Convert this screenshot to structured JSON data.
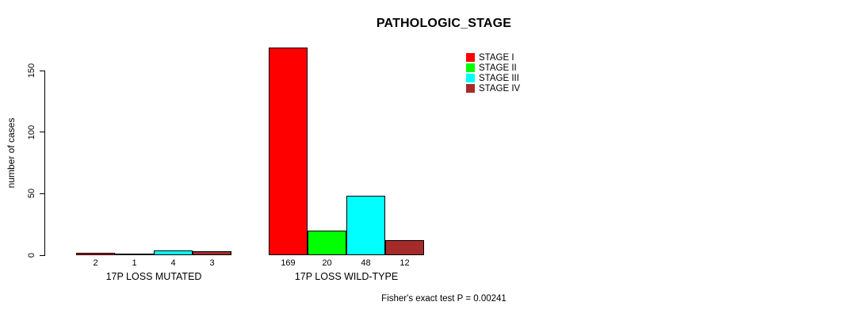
{
  "title": "PATHOLOGIC_STAGE",
  "chart_data": {
    "type": "bar",
    "title": "PATHOLOGIC_STAGE",
    "xlabel": "",
    "ylabel": "number of cases",
    "yticks": [
      0,
      50,
      100,
      150
    ],
    "axis_range": [
      0,
      150
    ],
    "grid": false,
    "legend_position": "top-right",
    "categories": [
      "17P LOSS MUTATED",
      "17P LOSS WILD-TYPE"
    ],
    "series": [
      {
        "name": "STAGE I",
        "color": "#ff0000",
        "values": [
          2,
          169
        ]
      },
      {
        "name": "STAGE II",
        "color": "#00ff00",
        "values": [
          1,
          20
        ]
      },
      {
        "name": "STAGE III",
        "color": "#00ffff",
        "values": [
          4,
          48
        ]
      },
      {
        "name": "STAGE IV",
        "color": "#a52a2a",
        "values": [
          3,
          12
        ]
      }
    ],
    "bar_value_labels": [
      [
        2,
        1,
        4,
        3
      ],
      [
        169,
        20,
        48,
        12
      ]
    ],
    "annotation": "Fisher's exact test P = 0.00241"
  }
}
